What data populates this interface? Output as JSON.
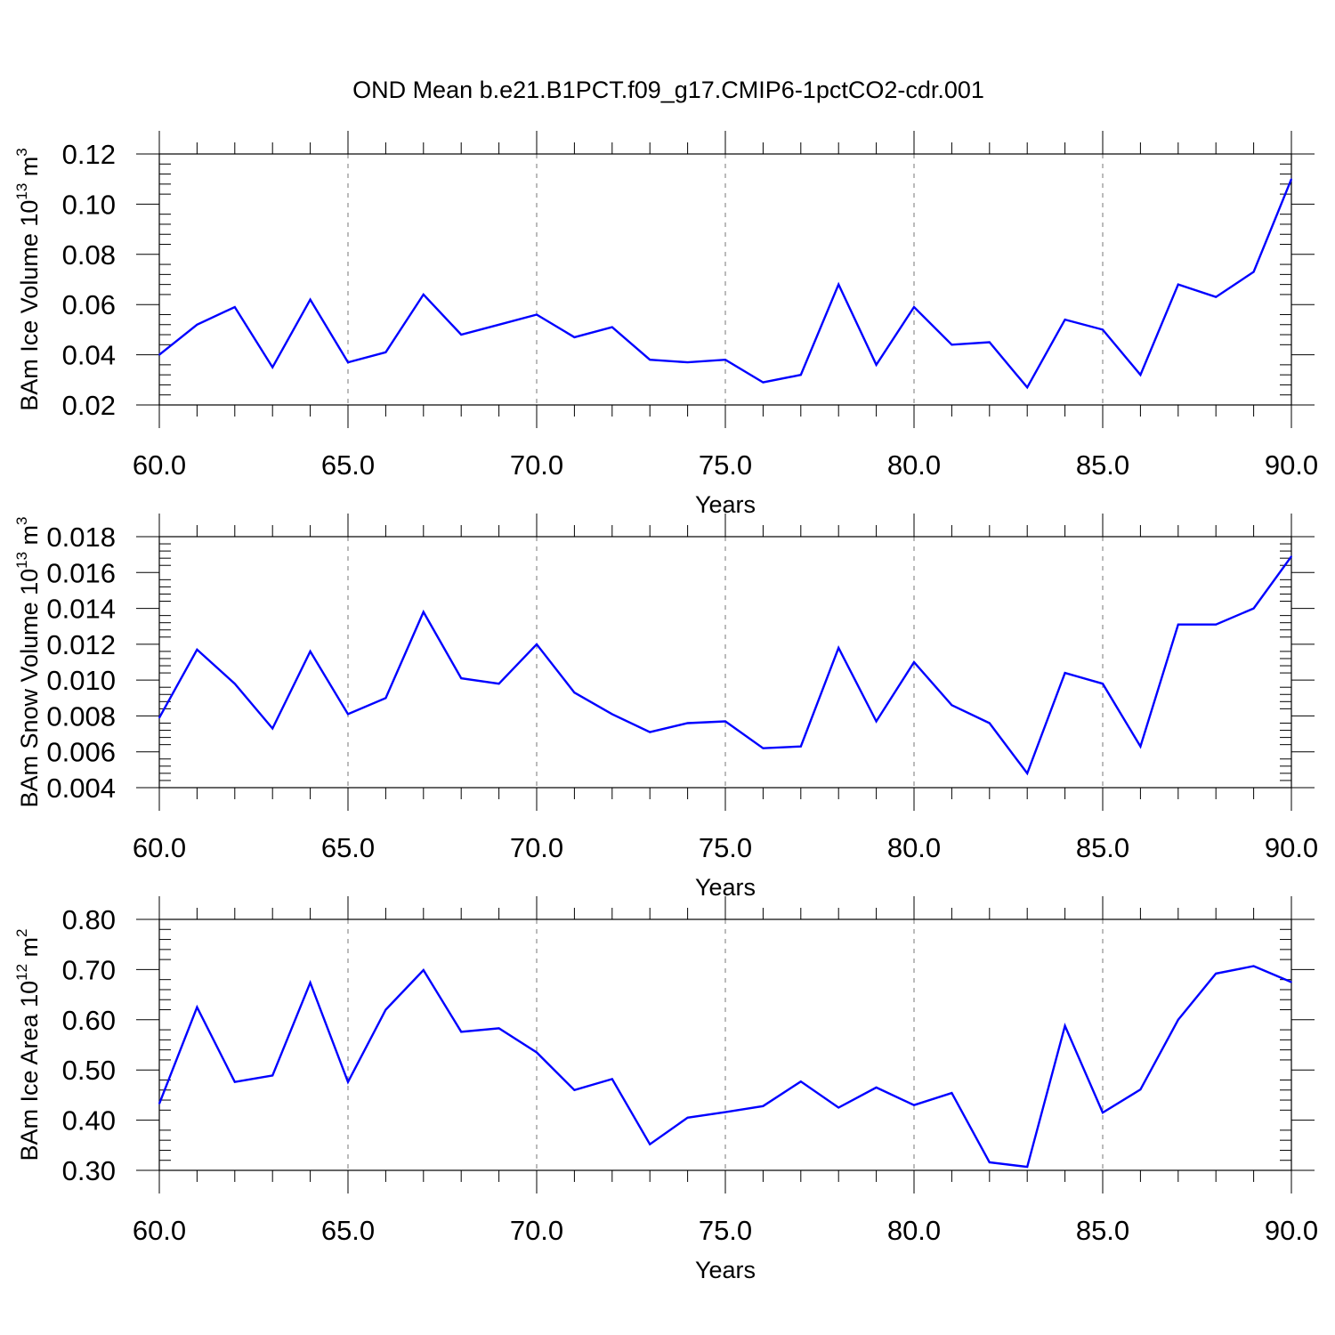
{
  "title": "OND Mean b.e21.B1PCT.f09_g17.CMIP6-1pctCO2-cdr.001",
  "line_color": "#0000ff",
  "chart_data": [
    {
      "type": "line",
      "ylabel": {
        "main": "BAm Ice Volume 10",
        "exp": "13",
        "unit": " m",
        "unit_exp": "3"
      },
      "xlabel": "Years",
      "xlim": [
        60,
        90
      ],
      "ylim": [
        0.02,
        0.12
      ],
      "x_ticks": [
        60,
        65,
        70,
        75,
        80,
        85,
        90
      ],
      "x_tick_labels": [
        "60.0",
        "65.0",
        "70.0",
        "75.0",
        "80.0",
        "85.0",
        "90.0"
      ],
      "y_ticks": [
        0.02,
        0.04,
        0.06,
        0.08,
        0.1,
        0.12
      ],
      "y_tick_labels": [
        "0.02",
        "0.04",
        "0.06",
        "0.08",
        "0.10",
        "0.12"
      ],
      "grid": "dashed vertical at major x ticks",
      "series": [
        {
          "x": [
            60,
            61,
            62,
            63,
            64,
            65,
            66,
            67,
            68,
            69,
            70,
            71,
            72,
            73,
            74,
            75,
            76,
            77,
            78,
            79,
            80,
            81,
            82,
            83,
            84,
            85,
            86,
            87,
            88,
            89,
            90
          ],
          "values": [
            0.04,
            0.052,
            0.059,
            0.035,
            0.062,
            0.037,
            0.041,
            0.064,
            0.048,
            0.052,
            0.056,
            0.047,
            0.051,
            0.038,
            0.037,
            0.038,
            0.029,
            0.032,
            0.068,
            0.036,
            0.059,
            0.044,
            0.045,
            0.027,
            0.054,
            0.05,
            0.032,
            0.068,
            0.063,
            0.073,
            0.11
          ]
        }
      ]
    },
    {
      "type": "line",
      "ylabel": {
        "main": "BAm Snow Volume 10",
        "exp": "13",
        "unit": " m",
        "unit_exp": "3"
      },
      "xlabel": "Years",
      "xlim": [
        60,
        90
      ],
      "ylim": [
        0.004,
        0.018
      ],
      "x_ticks": [
        60,
        65,
        70,
        75,
        80,
        85,
        90
      ],
      "x_tick_labels": [
        "60.0",
        "65.0",
        "70.0",
        "75.0",
        "80.0",
        "85.0",
        "90.0"
      ],
      "y_ticks": [
        0.004,
        0.006,
        0.008,
        0.01,
        0.012,
        0.014,
        0.016,
        0.018
      ],
      "y_tick_labels": [
        "0.004",
        "0.006",
        "0.008",
        "0.010",
        "0.012",
        "0.014",
        "0.016",
        "0.018"
      ],
      "grid": "dashed vertical at major x ticks",
      "series": [
        {
          "x": [
            60,
            61,
            62,
            63,
            64,
            65,
            66,
            67,
            68,
            69,
            70,
            71,
            72,
            73,
            74,
            75,
            76,
            77,
            78,
            79,
            80,
            81,
            82,
            83,
            84,
            85,
            86,
            87,
            88,
            89,
            90
          ],
          "values": [
            0.0079,
            0.0117,
            0.0098,
            0.0073,
            0.0116,
            0.0081,
            0.009,
            0.0138,
            0.0101,
            0.0098,
            0.012,
            0.0093,
            0.0081,
            0.0071,
            0.0076,
            0.0077,
            0.0062,
            0.0063,
            0.0118,
            0.0077,
            0.011,
            0.0086,
            0.0076,
            0.0048,
            0.0104,
            0.0098,
            0.0063,
            0.0131,
            0.0131,
            0.014,
            0.0169
          ]
        }
      ]
    },
    {
      "type": "line",
      "ylabel": {
        "main": "BAm Ice Area 10",
        "exp": "12",
        "unit": " m",
        "unit_exp": "2"
      },
      "xlabel": "Years",
      "xlim": [
        60,
        90
      ],
      "ylim": [
        0.3,
        0.8
      ],
      "x_ticks": [
        60,
        65,
        70,
        75,
        80,
        85,
        90
      ],
      "x_tick_labels": [
        "60.0",
        "65.0",
        "70.0",
        "75.0",
        "80.0",
        "85.0",
        "90.0"
      ],
      "y_ticks": [
        0.3,
        0.4,
        0.5,
        0.6,
        0.7,
        0.8
      ],
      "y_tick_labels": [
        "0.30",
        "0.40",
        "0.50",
        "0.60",
        "0.70",
        "0.80"
      ],
      "grid": "dashed vertical at major x ticks",
      "series": [
        {
          "x": [
            60,
            61,
            62,
            63,
            64,
            65,
            66,
            67,
            68,
            69,
            70,
            71,
            72,
            73,
            74,
            75,
            76,
            77,
            78,
            79,
            80,
            81,
            82,
            83,
            84,
            85,
            86,
            87,
            88,
            89,
            90
          ],
          "values": [
            0.433,
            0.625,
            0.476,
            0.489,
            0.674,
            0.476,
            0.62,
            0.699,
            0.576,
            0.583,
            0.535,
            0.46,
            0.482,
            0.352,
            0.405,
            0.416,
            0.428,
            0.477,
            0.425,
            0.465,
            0.43,
            0.454,
            0.316,
            0.307,
            0.588,
            0.415,
            0.461,
            0.6,
            0.692,
            0.707,
            0.675
          ]
        }
      ]
    }
  ]
}
